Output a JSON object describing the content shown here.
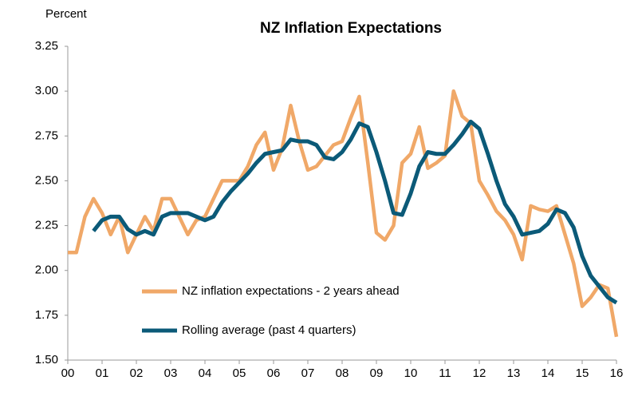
{
  "chart_data": {
    "type": "line",
    "title": "NZ Inflation Expectations",
    "y_label": "Percent",
    "x": [
      0,
      0.25,
      0.5,
      0.75,
      1,
      1.25,
      1.5,
      1.75,
      2,
      2.25,
      2.5,
      2.75,
      3,
      3.25,
      3.5,
      3.75,
      4,
      4.25,
      4.5,
      4.75,
      5,
      5.25,
      5.5,
      5.75,
      6,
      6.25,
      6.5,
      6.75,
      7,
      7.25,
      7.5,
      7.75,
      8,
      8.25,
      8.5,
      8.75,
      9,
      9.25,
      9.5,
      9.75,
      10,
      10.25,
      10.5,
      10.75,
      11,
      11.25,
      11.5,
      11.75,
      12,
      12.25,
      12.5,
      12.75,
      13,
      13.25,
      13.5,
      13.75,
      14,
      14.25,
      14.5,
      14.75,
      15,
      15.25,
      15.5,
      15.75,
      16
    ],
    "series": [
      {
        "name": "NZ inflation expectations - 2 years ahead",
        "color": "#f0a868",
        "values": [
          2.1,
          2.1,
          2.3,
          2.4,
          2.32,
          2.2,
          2.3,
          2.1,
          2.2,
          2.3,
          2.22,
          2.4,
          2.4,
          2.3,
          2.2,
          2.28,
          2.3,
          2.4,
          2.5,
          2.5,
          2.5,
          2.58,
          2.7,
          2.77,
          2.56,
          2.68,
          2.92,
          2.72,
          2.56,
          2.58,
          2.64,
          2.7,
          2.72,
          2.85,
          2.97,
          2.6,
          2.21,
          2.17,
          2.25,
          2.6,
          2.65,
          2.8,
          2.57,
          2.6,
          2.64,
          3.0,
          2.86,
          2.82,
          2.5,
          2.42,
          2.33,
          2.28,
          2.2,
          2.06,
          2.36,
          2.34,
          2.33,
          2.36,
          2.2,
          2.04,
          1.8,
          1.85,
          1.92,
          1.9,
          1.63
        ]
      },
      {
        "name": "Rolling average (past 4 quarters)",
        "color": "#0b5a78",
        "values": [
          null,
          null,
          null,
          2.22,
          2.28,
          2.3,
          2.3,
          2.23,
          2.2,
          2.22,
          2.2,
          2.3,
          2.32,
          2.32,
          2.32,
          2.3,
          2.28,
          2.3,
          2.38,
          2.44,
          2.49,
          2.54,
          2.6,
          2.65,
          2.66,
          2.67,
          2.73,
          2.72,
          2.72,
          2.7,
          2.63,
          2.62,
          2.66,
          2.73,
          2.82,
          2.8,
          2.66,
          2.5,
          2.32,
          2.31,
          2.43,
          2.58,
          2.66,
          2.65,
          2.65,
          2.7,
          2.76,
          2.83,
          2.79,
          2.65,
          2.5,
          2.37,
          2.3,
          2.2,
          2.21,
          2.22,
          2.26,
          2.34,
          2.32,
          2.24,
          2.08,
          1.97,
          1.91,
          1.85,
          1.82
        ]
      }
    ],
    "xlim": [
      0,
      16
    ],
    "xticks": [
      {
        "value": 0,
        "label": "00"
      },
      {
        "value": 1,
        "label": "01"
      },
      {
        "value": 2,
        "label": "02"
      },
      {
        "value": 3,
        "label": "03"
      },
      {
        "value": 4,
        "label": "04"
      },
      {
        "value": 5,
        "label": "05"
      },
      {
        "value": 6,
        "label": "06"
      },
      {
        "value": 7,
        "label": "07"
      },
      {
        "value": 8,
        "label": "08"
      },
      {
        "value": 9,
        "label": "09"
      },
      10,
      11,
      12,
      13,
      14,
      15,
      16
    ],
    "ylim": [
      1.5,
      3.25
    ],
    "yticks": [
      {
        "value": 1.5,
        "label": "1.50"
      },
      1.75,
      {
        "value": 2,
        "label": "2.00"
      },
      2.25,
      {
        "value": 2.5,
        "label": "2.50"
      },
      2.75,
      {
        "value": 3,
        "label": "3.00"
      },
      3.25
    ],
    "grid": false
  }
}
